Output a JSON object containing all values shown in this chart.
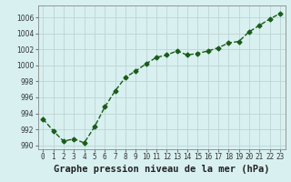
{
  "x": [
    0,
    1,
    2,
    3,
    4,
    5,
    6,
    7,
    8,
    9,
    10,
    11,
    12,
    13,
    14,
    15,
    16,
    17,
    18,
    19,
    20,
    21,
    22,
    23
  ],
  "y": [
    993.3,
    991.8,
    990.5,
    990.8,
    990.3,
    992.3,
    994.8,
    996.8,
    998.5,
    999.3,
    1000.2,
    1001.0,
    1001.3,
    1001.8,
    1001.3,
    1001.5,
    1001.8,
    1002.2,
    1002.8,
    1003.0,
    1004.2,
    1005.0,
    1005.8,
    1006.5
  ],
  "line_color": "#1a5c1a",
  "marker": "D",
  "marker_size": 2.5,
  "bg_color": "#d8f0f0",
  "grid_color": "#c0d4d4",
  "xlabel": "Graphe pression niveau de la mer (hPa)",
  "xlabel_fontsize": 7.5,
  "ylabel_ticks": [
    990,
    992,
    994,
    996,
    998,
    1000,
    1002,
    1004,
    1006
  ],
  "xtick_labels": [
    "0",
    "1",
    "2",
    "3",
    "4",
    "5",
    "6",
    "7",
    "8",
    "9",
    "10",
    "11",
    "12",
    "13",
    "14",
    "15",
    "16",
    "17",
    "18",
    "19",
    "20",
    "21",
    "22",
    "23"
  ],
  "ylim": [
    989.5,
    1007.5
  ],
  "xlim": [
    -0.5,
    23.5
  ],
  "tick_fontsize": 5.5,
  "linewidth": 1.0
}
